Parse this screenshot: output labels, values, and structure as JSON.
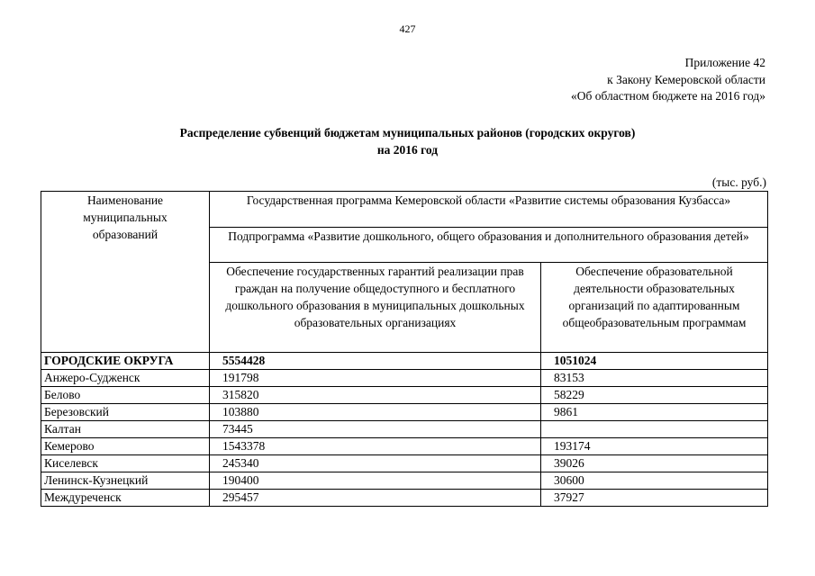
{
  "page_number": "427",
  "appendix": {
    "line1": "Приложение 42",
    "line2": "к Закону Кемеровской области",
    "line3": "«Об областном бюджете на 2016 год»"
  },
  "title": {
    "line1": "Распределение субвенций бюджетам муниципальных районов (городских округов)",
    "line2": "на 2016 год"
  },
  "units": "(тыс. руб.)",
  "table": {
    "headers": {
      "municipality": "Наименование муниципальных образований",
      "program": "Государственная программа Кемеровской области «Развитие системы образования Кузбасса»",
      "subprogram": "Подпрограмма «Развитие дошкольного, общего образования и дополнительного образования детей»",
      "col1": "Обеспечение государственных гарантий реализации прав граждан на получение общедоступного и бесплатного дошкольного образования в муниципальных дошкольных образовательных организациях",
      "col2": "Обеспечение образовательной деятельности образовательных организаций по адаптированным общеобразовательным программам"
    },
    "rows": [
      {
        "name": "ГОРОДСКИЕ ОКРУГА",
        "v1": "5554428",
        "v2": "1051024"
      },
      {
        "name": "Анжеро-Судженск",
        "v1": "191798",
        "v2": "83153"
      },
      {
        "name": "Белово",
        "v1": "315820",
        "v2": "58229"
      },
      {
        "name": "Березовский",
        "v1": "103880",
        "v2": "9861"
      },
      {
        "name": "Калтан",
        "v1": "73445",
        "v2": ""
      },
      {
        "name": "Кемерово",
        "v1": "1543378",
        "v2": "193174"
      },
      {
        "name": "Киселевск",
        "v1": "245340",
        "v2": "39026"
      },
      {
        "name": "Ленинск-Кузнецкий",
        "v1": "190400",
        "v2": "30600"
      },
      {
        "name": "Междуреченск",
        "v1": "295457",
        "v2": "37927"
      }
    ]
  }
}
